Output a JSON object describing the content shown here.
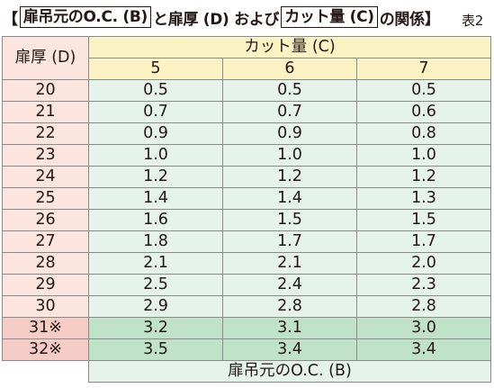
{
  "title": {
    "open_bracket": "【",
    "box1": "扉吊元のO.C. (B)",
    "mid1": "と扉厚 (D) および",
    "box2": "カット量 (C)",
    "mid2": "の関係",
    "close_bracket": "】",
    "table_no": "表2"
  },
  "table": {
    "row_header": "扉厚 (D)",
    "col_group_header": "カット量 (C)",
    "columns": [
      "5",
      "6",
      "7"
    ],
    "footer": "扉吊元のO.C. (B)",
    "rows": [
      {
        "d": "20",
        "values": [
          "0.5",
          "0.5",
          "0.5"
        ]
      },
      {
        "d": "21",
        "values": [
          "0.7",
          "0.7",
          "0.6"
        ]
      },
      {
        "d": "22",
        "values": [
          "0.9",
          "0.9",
          "0.8"
        ]
      },
      {
        "d": "23",
        "values": [
          "1.0",
          "1.0",
          "1.0"
        ]
      },
      {
        "d": "24",
        "values": [
          "1.2",
          "1.2",
          "1.2"
        ]
      },
      {
        "d": "25",
        "values": [
          "1.4",
          "1.4",
          "1.3"
        ]
      },
      {
        "d": "26",
        "values": [
          "1.6",
          "1.5",
          "1.5"
        ]
      },
      {
        "d": "27",
        "values": [
          "1.8",
          "1.7",
          "1.7"
        ]
      },
      {
        "d": "28",
        "values": [
          "2.1",
          "2.1",
          "2.0"
        ]
      },
      {
        "d": "29",
        "values": [
          "2.5",
          "2.4",
          "2.3"
        ]
      },
      {
        "d": "30",
        "values": [
          "2.9",
          "2.8",
          "2.8"
        ]
      },
      {
        "d": "31※",
        "values": [
          "3.2",
          "3.1",
          "3.0"
        ],
        "highlight": true
      },
      {
        "d": "32※",
        "values": [
          "3.5",
          "3.4",
          "3.4"
        ],
        "highlight": true
      }
    ]
  },
  "colors": {
    "d_column": "#fce5df",
    "header": "#fcf3c5",
    "value_cells": "#e6f3ea",
    "highlight_d": "#f6cdc6",
    "highlight_values": "#bfe2c9"
  }
}
